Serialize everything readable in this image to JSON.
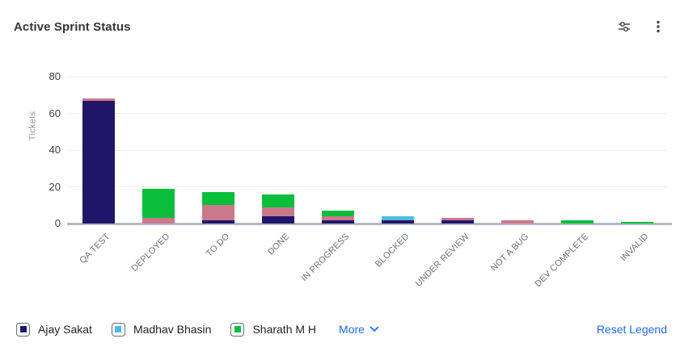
{
  "header": {
    "title": "Active Sprint Status",
    "icons": {
      "filter": "filter-sliders-icon",
      "menu": "kebab-menu-icon"
    }
  },
  "chart_data": {
    "type": "bar",
    "stacked": true,
    "ylabel": "Tickets",
    "ylim": [
      0,
      80
    ],
    "yticks": [
      0,
      20,
      40,
      60,
      80
    ],
    "grid": true,
    "legend_position": "bottom",
    "categories": [
      "QA TEST",
      "DEPLOYED",
      "TO DO",
      "DONE",
      "IN PROGRESS",
      "BLOCKED",
      "UNDER REVIEW",
      "NOT A BUG",
      "DEV COMPLETE",
      "INVALID"
    ],
    "series": [
      {
        "name": "Ajay Sakat",
        "color": "#211569",
        "values": [
          67,
          0,
          2,
          4,
          2,
          2,
          2,
          0,
          0,
          0
        ]
      },
      {
        "name": "Madhav Bhasin",
        "color": "#4dbbe3",
        "values": [
          0,
          0,
          0,
          0,
          0,
          2,
          0,
          0,
          0,
          0
        ]
      },
      {
        "name": "",
        "color": "#c9798a",
        "values": [
          1,
          3,
          8,
          5,
          2,
          0,
          1,
          2,
          0,
          0
        ]
      },
      {
        "name": "Sharath M H",
        "color": "#0abe3c",
        "values": [
          0,
          16,
          7,
          7,
          3,
          0,
          0,
          0,
          2,
          1
        ]
      }
    ],
    "totals": [
      68,
      19,
      17,
      16,
      7,
      4,
      3,
      2,
      2,
      1
    ]
  },
  "legend": {
    "items": [
      {
        "label": "Ajay Sakat",
        "color": "#211569"
      },
      {
        "label": "Madhav Bhasin",
        "color": "#4dbbe3"
      },
      {
        "label": "Sharath M H",
        "color": "#0abe3c"
      }
    ],
    "more_label": "More",
    "reset_label": "Reset Legend"
  },
  "colors": {
    "link": "#2169e8",
    "icon": "#44474b",
    "gridline": "#eeeeee",
    "baseline": "#b3b9c5"
  }
}
